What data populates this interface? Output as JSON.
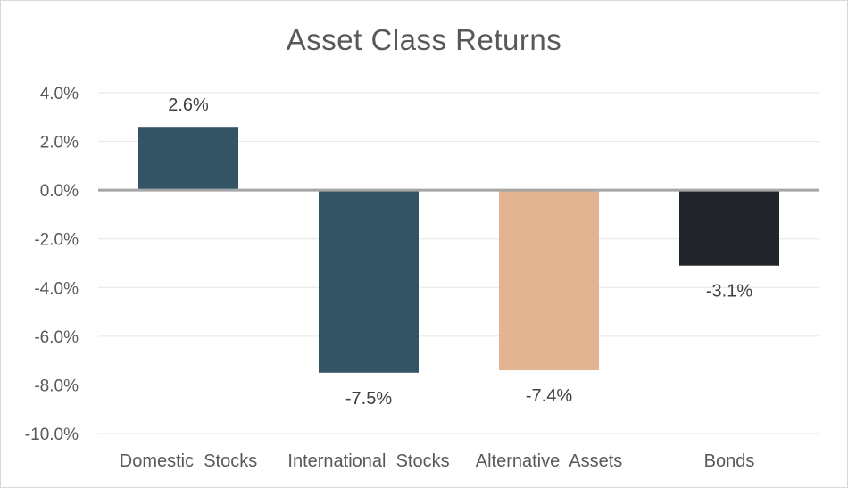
{
  "chart_data": {
    "type": "bar",
    "title": "Asset Class Returns",
    "xlabel": "",
    "ylabel": "",
    "categories": [
      "Domestic  Stocks",
      "International  Stocks",
      "Alternative  Assets",
      "Bonds"
    ],
    "values": [
      2.6,
      -7.5,
      -7.4,
      -3.1
    ],
    "data_labels": [
      "2.6%",
      "-7.5%",
      "-7.4%",
      "-3.1%"
    ],
    "colors": [
      "#325465",
      "#325465",
      "#E2B491",
      "#22252A"
    ],
    "ylim": [
      -10,
      4
    ],
    "yticks": [
      4,
      2,
      0,
      -2,
      -4,
      -6,
      -8,
      -10
    ],
    "ytick_labels": [
      "4.0%",
      "2.0%",
      "0.0%",
      "-2.0%",
      "-4.0%",
      "-6.0%",
      "-8.0%",
      "-10.0%"
    ],
    "grid": true,
    "legend": "none"
  }
}
